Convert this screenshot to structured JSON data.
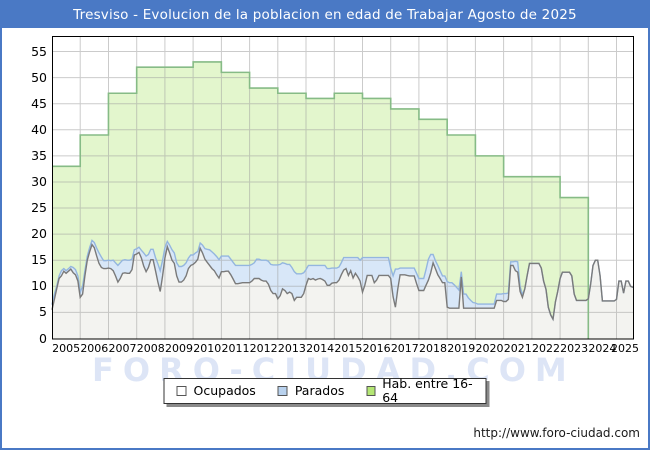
{
  "title_bar": {
    "text": "Tresviso - Evolucion de la poblacion en edad de Trabajar Agosto de 2025",
    "bg_color": "#4a79c5",
    "text_color": "#ffffff"
  },
  "watermark": {
    "text": "FORO-CIUDAD.COM",
    "color": "#dde5f6"
  },
  "footer": {
    "url": "http://www.foro-ciudad.com"
  },
  "legend": {
    "items": [
      {
        "label": "Ocupados",
        "swatch_color": "#ffffff"
      },
      {
        "label": "Parados",
        "swatch_color": "#b9d2ee"
      },
      {
        "label": "Hab. entre 16-64",
        "swatch_color": "#b4e674"
      }
    ]
  },
  "axes": {
    "y_ticks": [
      "0",
      "5",
      "10",
      "15",
      "20",
      "25",
      "30",
      "35",
      "40",
      "45",
      "50",
      "55"
    ],
    "x_ticks": [
      "2005",
      "2006",
      "2007",
      "2008",
      "2009",
      "2010",
      "2011",
      "2012",
      "2013",
      "2014",
      "2015",
      "2016",
      "2017",
      "2018",
      "2019",
      "2020",
      "2021",
      "2022",
      "2023",
      "2024",
      "2025"
    ]
  },
  "chart_data": {
    "type": "area",
    "title": "Tresviso - Evolucion de la poblacion en edad de Trabajar Agosto de 2025",
    "x_start": "2005-01",
    "x_end": "2025-08",
    "ylim": [
      0,
      58
    ],
    "grid": true,
    "legend_position": "bottom",
    "colors": {
      "grid": "rgba(160,160,160,0.55)",
      "plot_border": "#000000",
      "green_fill": "#e3f6cd",
      "green_stroke": "#86bb86",
      "blue_fill": "#d8e7f8",
      "blue_stroke": "#94b6df",
      "gray_fill": "#f3f3f0",
      "gray_stroke": "#7a7a7a"
    },
    "series": [
      {
        "name": "Hab. entre 16-64",
        "type": "annual_step",
        "years": [
          2005,
          2006,
          2007,
          2008,
          2009,
          2010,
          2011,
          2012,
          2013,
          2014,
          2015,
          2016,
          2017,
          2018,
          2019,
          2020,
          2021,
          2022,
          2023
        ],
        "values": [
          33,
          39,
          47,
          52,
          52,
          53,
          51,
          48,
          47,
          46,
          47,
          46,
          44,
          42,
          39,
          35,
          31,
          31,
          27
        ],
        "data_ends": "2024-01"
      },
      {
        "name": "Ocupados",
        "type": "monthly",
        "values": [
          5.5,
          7.5,
          9.5,
          11.5,
          12.0,
          12.9,
          12.5,
          12.9,
          13.3,
          12.6,
          12.2,
          11.0,
          7.9,
          8.5,
          12.0,
          15.0,
          16.6,
          18.0,
          17.4,
          15.8,
          14.4,
          13.6,
          13.4,
          13.4,
          13.5,
          13.4,
          13.0,
          12.0,
          10.8,
          11.5,
          12.5,
          12.6,
          12.5,
          12.5,
          13.2,
          16.0,
          16.2,
          16.5,
          15.4,
          13.9,
          12.8,
          13.6,
          15.1,
          15.1,
          13.0,
          10.8,
          9.0,
          12.0,
          15.4,
          17.6,
          16.4,
          15.0,
          14.4,
          12.0,
          10.8,
          10.8,
          11.2,
          12.0,
          13.4,
          14.0,
          14.2,
          14.6,
          15.2,
          17.3,
          16.4,
          15.2,
          14.6,
          14.0,
          13.4,
          13.0,
          12.2,
          11.6,
          12.8,
          12.8,
          12.9,
          12.9,
          12.2,
          11.4,
          10.5,
          10.5,
          10.6,
          10.7,
          10.7,
          10.7,
          10.7,
          11.0,
          11.5,
          11.5,
          11.5,
          11.2,
          11.0,
          11.0,
          10.4,
          9.2,
          8.6,
          8.6,
          7.6,
          8.2,
          9.5,
          9.2,
          8.6,
          8.9,
          8.6,
          7.3,
          7.9,
          7.9,
          7.9,
          8.6,
          10.2,
          11.5,
          11.3,
          11.5,
          11.2,
          11.4,
          11.5,
          11.3,
          11.0,
          10.2,
          10.2,
          10.6,
          10.7,
          10.7,
          11.2,
          12.2,
          13.1,
          13.4,
          12.1,
          13.0,
          11.6,
          12.5,
          11.8,
          11.0,
          8.9,
          10.2,
          12.1,
          12.1,
          12.1,
          10.7,
          11.2,
          12.1,
          12.1,
          12.1,
          12.1,
          12.1,
          11.5,
          8.0,
          6.0,
          9.5,
          12.2,
          12.2,
          12.2,
          12.1,
          12.0,
          12.0,
          12.0,
          10.5,
          9.2,
          9.2,
          9.2,
          10.2,
          11.2,
          12.6,
          14.5,
          13.4,
          12.2,
          11.5,
          10.7,
          10.7,
          6.0,
          5.8,
          5.8,
          5.8,
          5.8,
          5.8,
          11.8,
          5.8,
          5.8,
          5.8,
          5.8,
          5.8,
          5.8,
          5.8,
          5.8,
          5.8,
          5.8,
          5.8,
          5.8,
          5.8,
          5.8,
          7.3,
          7.3,
          7.3,
          7.1,
          7.1,
          7.5,
          14.0,
          14.0,
          13.0,
          12.7,
          9.0,
          7.9,
          9.5,
          12.0,
          14.4,
          14.4,
          14.4,
          14.4,
          14.4,
          13.5,
          11.0,
          9.4,
          6.0,
          4.5,
          3.7,
          7.0,
          9.0,
          11.5,
          12.7,
          12.7,
          12.7,
          12.7,
          12.0,
          8.5,
          7.3,
          7.3,
          7.3,
          7.3,
          7.3,
          7.6,
          10.5,
          14.0,
          15.0,
          15.0,
          12.0,
          7.2,
          7.2,
          7.2,
          7.2,
          7.2,
          7.2,
          7.5,
          11.0,
          11.0,
          8.7,
          11.0,
          11.0,
          10.0,
          9.8
        ]
      },
      {
        "name": "Parados",
        "type": "monthly_stacked_on_ocupados",
        "values": [
          1.0,
          1.0,
          0.5,
          0.5,
          1.0,
          0.5,
          0.5,
          0.5,
          0.5,
          1.0,
          1.0,
          1.0,
          1.0,
          1.5,
          1.0,
          0.8,
          0.8,
          0.8,
          1.0,
          1.5,
          2.0,
          2.0,
          1.5,
          1.5,
          1.5,
          1.5,
          2.0,
          2.5,
          3.2,
          3.0,
          2.5,
          2.5,
          2.5,
          2.5,
          2.0,
          1.0,
          1.0,
          1.0,
          1.5,
          2.5,
          3.0,
          2.5,
          2.0,
          2.0,
          2.5,
          3.5,
          4.0,
          3.0,
          2.0,
          1.0,
          1.5,
          2.0,
          2.0,
          2.5,
          3.0,
          3.0,
          2.8,
          2.5,
          2.0,
          2.0,
          1.8,
          1.8,
          1.5,
          1.0,
          1.5,
          2.0,
          2.5,
          3.0,
          3.2,
          3.2,
          3.5,
          3.5,
          3.0,
          3.0,
          2.9,
          2.9,
          3.0,
          3.2,
          3.5,
          3.5,
          3.4,
          3.3,
          3.3,
          3.3,
          3.3,
          3.2,
          3.0,
          3.7,
          3.7,
          3.8,
          4.0,
          4.0,
          4.4,
          5.0,
          5.5,
          5.5,
          6.5,
          6.0,
          5.0,
          5.2,
          5.6,
          5.3,
          5.0,
          5.5,
          4.5,
          4.5,
          4.5,
          4.0,
          3.0,
          2.5,
          2.7,
          2.5,
          2.8,
          2.6,
          2.5,
          2.7,
          3.0,
          3.2,
          3.2,
          2.9,
          2.8,
          2.8,
          2.5,
          2.3,
          2.4,
          2.1,
          3.4,
          2.5,
          3.9,
          3.0,
          3.7,
          4.0,
          6.6,
          5.3,
          3.4,
          3.4,
          3.4,
          4.8,
          4.3,
          3.4,
          3.4,
          3.4,
          3.4,
          3.4,
          2.0,
          4.0,
          7.3,
          3.8,
          1.3,
          1.3,
          1.3,
          1.4,
          1.5,
          1.5,
          1.5,
          2.0,
          2.3,
          2.3,
          2.3,
          3.0,
          4.0,
          3.5,
          1.6,
          1.5,
          1.8,
          1.5,
          1.3,
          1.3,
          4.9,
          4.9,
          4.9,
          4.5,
          4.0,
          3.5,
          1.0,
          2.7,
          2.7,
          2.0,
          1.5,
          1.1,
          1.0,
          0.8,
          0.8,
          0.8,
          0.8,
          0.8,
          0.8,
          0.8,
          0.8,
          1.2,
          1.2,
          1.2,
          1.5,
          1.5,
          1.2,
          0.7,
          0.7,
          1.8,
          2.0,
          1.0,
          0.5,
          0,
          0,
          0,
          0,
          0,
          0,
          0,
          0,
          0,
          0,
          0,
          0,
          0,
          0,
          0,
          0,
          0,
          0,
          0,
          0,
          0,
          0,
          0,
          0,
          0,
          0,
          0,
          0,
          0,
          0,
          0,
          0,
          0,
          0,
          0,
          0,
          0,
          0,
          0,
          0,
          0,
          0,
          0,
          0,
          0,
          0,
          0
        ]
      }
    ]
  }
}
